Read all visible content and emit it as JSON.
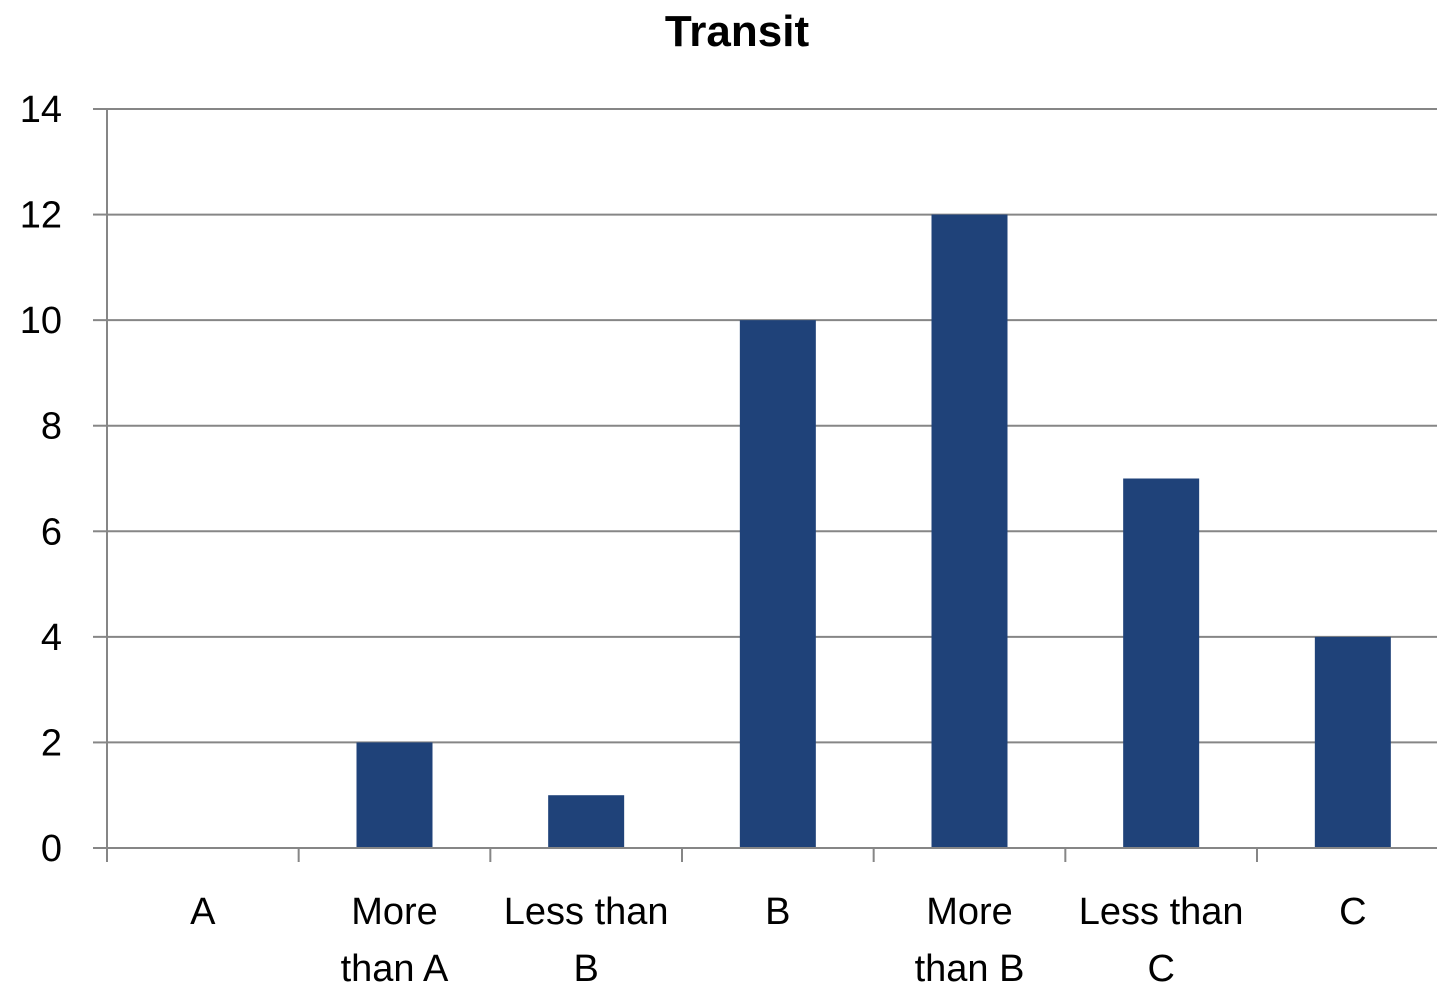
{
  "chart_data": {
    "type": "bar",
    "title": "Transit",
    "xlabel": "",
    "ylabel": "",
    "categories": [
      [
        "A"
      ],
      [
        "More",
        "than A"
      ],
      [
        "Less than",
        "B"
      ],
      [
        "B"
      ],
      [
        "More",
        "than B"
      ],
      [
        "Less than",
        "C"
      ],
      [
        "C"
      ]
    ],
    "values": [
      0,
      2,
      1,
      10,
      12,
      7,
      4
    ],
    "ylim": [
      0,
      14
    ],
    "yticks": [
      0,
      2,
      4,
      6,
      8,
      10,
      12,
      14
    ],
    "grid": true,
    "legend": "none",
    "bar_color": "#1f4279"
  }
}
